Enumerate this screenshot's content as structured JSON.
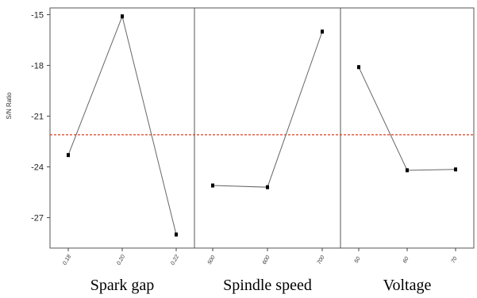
{
  "chart_data": {
    "type": "line",
    "ylabel": "S/N Ratio",
    "ylim": [
      -28.8,
      -14.6
    ],
    "yticks": [
      -15,
      -18,
      -21,
      -24,
      -27
    ],
    "yticklabels": [
      "-15",
      "-18",
      "-21",
      "-24",
      "-27"
    ],
    "reference_line": {
      "value": -22.1,
      "style": "dashed",
      "color": "#d93a1c"
    },
    "line_color": "#666666",
    "marker_color": "#000000",
    "panels": [
      {
        "name": "Spark gap",
        "x": [
          "0.18",
          "0.20",
          "0.22"
        ],
        "values": [
          -23.3,
          -15.1,
          -28.0
        ]
      },
      {
        "name": "Spindle speed",
        "x": [
          "500",
          "600",
          "700"
        ],
        "values": [
          -25.1,
          -25.2,
          -16.0
        ]
      },
      {
        "name": "Voltage",
        "x": [
          "50",
          "60",
          "70"
        ],
        "values": [
          -18.1,
          -24.2,
          -24.15
        ]
      }
    ]
  }
}
